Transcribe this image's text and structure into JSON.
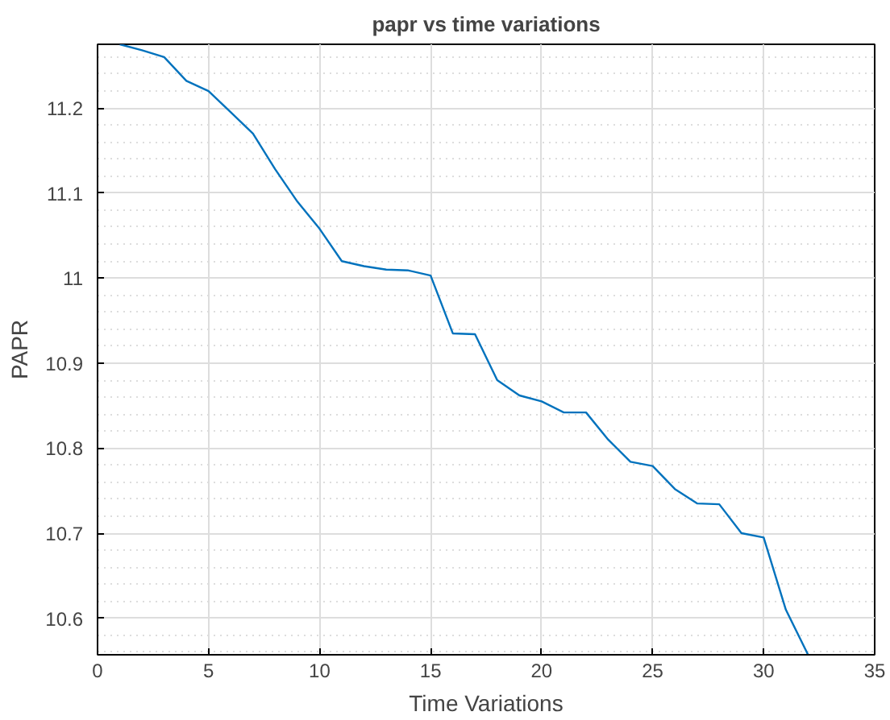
{
  "chart_data": {
    "type": "line",
    "title": "papr vs time variations",
    "xlabel": "Time Variations",
    "ylabel": "PAPR",
    "x": [
      1,
      2,
      3,
      4,
      5,
      6,
      7,
      8,
      9,
      10,
      11,
      12,
      13,
      14,
      15,
      16,
      17,
      18,
      19,
      20,
      21,
      22,
      23,
      24,
      25,
      26,
      27,
      28,
      29,
      30,
      31,
      32
    ],
    "series": [
      {
        "color": "#0072bd",
        "values": [
          11.275,
          11.268,
          11.26,
          11.232,
          11.22,
          11.195,
          11.17,
          11.128,
          11.09,
          11.058,
          11.02,
          11.014,
          11.01,
          11.009,
          11.003,
          10.935,
          10.934,
          10.88,
          10.862,
          10.855,
          10.842,
          10.842,
          10.81,
          10.784,
          10.779,
          10.752,
          10.735,
          10.734,
          10.7,
          10.695,
          10.61,
          10.557
        ]
      }
    ],
    "xlim": [
      0,
      35
    ],
    "ylim": [
      10.557,
      11.275
    ],
    "xticks": [
      0,
      5,
      10,
      15,
      20,
      25,
      30,
      35
    ],
    "yticks": [
      10.6,
      10.7,
      10.8,
      10.9,
      11,
      11.1,
      11.2
    ],
    "grid": true,
    "marker": "none",
    "line_style": "solid"
  }
}
